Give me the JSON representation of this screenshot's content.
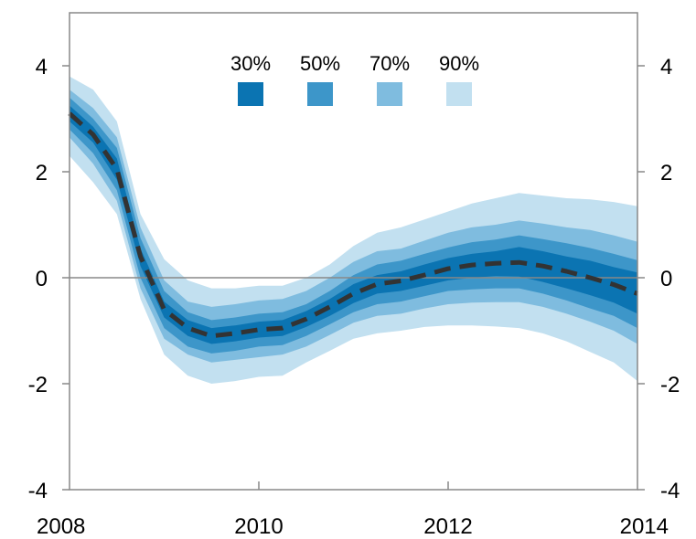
{
  "chart_data": {
    "type": "area",
    "title": "",
    "xlabel": "",
    "ylabel": "",
    "xlim": [
      2008,
      2014
    ],
    "ylim": [
      -4,
      5
    ],
    "x_ticks": [
      2008,
      2010,
      2012,
      2014
    ],
    "x_tick_labels": [
      "2008",
      "2010",
      "2012",
      "2014"
    ],
    "y_ticks": [
      -4,
      -2,
      0,
      2,
      4
    ],
    "y_tick_labels": [
      "-4",
      "-2",
      "0",
      "2",
      "4"
    ],
    "right_axis_mirrored": true,
    "zero_line": true,
    "grid": false,
    "legend_position": "top-center",
    "x": [
      2008.0,
      2008.25,
      2008.5,
      2008.75,
      2009.0,
      2009.25,
      2009.5,
      2009.75,
      2010.0,
      2010.25,
      2010.5,
      2010.75,
      2011.0,
      2011.25,
      2011.5,
      2011.75,
      2012.0,
      2012.25,
      2012.5,
      2012.75,
      2013.0,
      2013.25,
      2013.5,
      2013.75,
      2014.0
    ],
    "central": [
      3.1,
      2.7,
      2.05,
      0.4,
      -0.6,
      -0.95,
      -1.1,
      -1.05,
      -0.98,
      -0.95,
      -0.78,
      -0.55,
      -0.3,
      -0.12,
      -0.06,
      0.05,
      0.17,
      0.24,
      0.27,
      0.29,
      0.22,
      0.12,
      0.0,
      -0.13,
      -0.3
    ],
    "bands": [
      {
        "name": "90%",
        "color": "#c2e0f0",
        "upper": [
          3.8,
          3.55,
          2.95,
          1.2,
          0.35,
          -0.05,
          -0.2,
          -0.2,
          -0.15,
          -0.15,
          0.0,
          0.25,
          0.6,
          0.85,
          0.95,
          1.1,
          1.25,
          1.4,
          1.5,
          1.6,
          1.55,
          1.5,
          1.48,
          1.43,
          1.35
        ],
        "lower": [
          2.3,
          1.8,
          1.2,
          -0.4,
          -1.45,
          -1.85,
          -2.0,
          -1.95,
          -1.87,
          -1.85,
          -1.6,
          -1.38,
          -1.15,
          -1.05,
          -1.0,
          -0.93,
          -0.9,
          -0.9,
          -0.92,
          -0.95,
          -1.05,
          -1.2,
          -1.4,
          -1.6,
          -1.95
        ]
      },
      {
        "name": "70%",
        "color": "#7fbcdf",
        "upper": [
          3.55,
          3.2,
          2.65,
          0.95,
          -0.05,
          -0.45,
          -0.55,
          -0.5,
          -0.43,
          -0.4,
          -0.25,
          0.0,
          0.3,
          0.5,
          0.55,
          0.7,
          0.85,
          0.95,
          1.0,
          1.08,
          1.02,
          0.95,
          0.9,
          0.8,
          0.68
        ]
      },
      {
        "name": "50%",
        "color": "#3d96c9"
      },
      {
        "name": "30%",
        "color": "#0b74b2"
      }
    ],
    "legend": [
      {
        "label": "30%",
        "color": "#0b74b2"
      },
      {
        "label": "50%",
        "color": "#3d96c9"
      },
      {
        "label": "70%",
        "color": "#7fbcdf"
      },
      {
        "label": "90%",
        "color": "#c2e0f0"
      }
    ],
    "band_limits": {
      "b70_lower": [
        2.65,
        2.15,
        1.45,
        -0.2,
        -1.15,
        -1.45,
        -1.6,
        -1.55,
        -1.5,
        -1.45,
        -1.3,
        -1.08,
        -0.85,
        -0.72,
        -0.68,
        -0.58,
        -0.5,
        -0.47,
        -0.46,
        -0.46,
        -0.55,
        -0.68,
        -0.83,
        -1.0,
        -1.25
      ],
      "b50_upper": [
        3.4,
        3.0,
        2.45,
        0.75,
        -0.25,
        -0.65,
        -0.8,
        -0.75,
        -0.68,
        -0.65,
        -0.5,
        -0.25,
        0.05,
        0.25,
        0.32,
        0.45,
        0.57,
        0.67,
        0.72,
        0.8,
        0.73,
        0.65,
        0.56,
        0.45,
        0.33
      ],
      "b50_lower": [
        2.8,
        2.35,
        1.65,
        0.0,
        -0.95,
        -1.3,
        -1.43,
        -1.38,
        -1.3,
        -1.27,
        -1.1,
        -0.88,
        -0.65,
        -0.5,
        -0.45,
        -0.35,
        -0.25,
        -0.22,
        -0.2,
        -0.2,
        -0.3,
        -0.43,
        -0.58,
        -0.72,
        -0.95
      ],
      "b30_upper": [
        3.25,
        2.85,
        2.25,
        0.55,
        -0.45,
        -0.8,
        -0.95,
        -0.9,
        -0.83,
        -0.8,
        -0.63,
        -0.4,
        -0.12,
        0.05,
        0.12,
        0.25,
        0.37,
        0.45,
        0.5,
        0.58,
        0.5,
        0.4,
        0.32,
        0.2,
        0.1
      ],
      "b30_lower": [
        2.95,
        2.55,
        1.85,
        0.22,
        -0.75,
        -1.1,
        -1.25,
        -1.2,
        -1.13,
        -1.1,
        -0.93,
        -0.72,
        -0.48,
        -0.3,
        -0.25,
        -0.15,
        -0.05,
        0.0,
        0.03,
        0.02,
        -0.08,
        -0.2,
        -0.33,
        -0.47,
        -0.68
      ]
    },
    "colors": {
      "axis": "#888888",
      "zero_line": "#888888",
      "central_line": "#333333"
    }
  }
}
